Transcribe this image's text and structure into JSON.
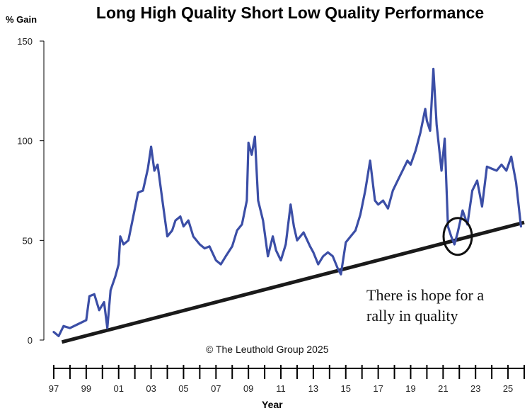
{
  "chart_data": {
    "type": "line",
    "title": "Long High Quality Short Low Quality Performance",
    "ylabel": "% Gain",
    "xlabel": "Year",
    "ylim": [
      0,
      150
    ],
    "yticks": [
      0,
      50,
      100,
      150
    ],
    "xlim": [
      1997,
      2026
    ],
    "xtick_labels": [
      "97",
      "99",
      "01",
      "03",
      "05",
      "07",
      "09",
      "11",
      "13",
      "15",
      "17",
      "19",
      "21",
      "23",
      "25"
    ],
    "series": [
      {
        "name": "Long High Quality Short Low Quality",
        "color": "#3b4ea6",
        "x": [
          1997.0,
          1997.3,
          1997.6,
          1998.0,
          1998.5,
          1999.0,
          1999.2,
          1999.5,
          1999.8,
          2000.1,
          2000.3,
          2000.5,
          2000.8,
          2001.0,
          2001.1,
          2001.3,
          2001.6,
          2001.9,
          2002.2,
          2002.5,
          2002.8,
          2003.0,
          2003.2,
          2003.4,
          2003.7,
          2004.0,
          2004.3,
          2004.5,
          2004.8,
          2005.0,
          2005.3,
          2005.6,
          2006.0,
          2006.3,
          2006.6,
          2007.0,
          2007.3,
          2007.6,
          2008.0,
          2008.3,
          2008.6,
          2008.9,
          2009.0,
          2009.2,
          2009.4,
          2009.6,
          2009.9,
          2010.2,
          2010.5,
          2010.7,
          2011.0,
          2011.3,
          2011.6,
          2011.8,
          2012.0,
          2012.4,
          2012.8,
          2013.0,
          2013.3,
          2013.6,
          2013.9,
          2014.2,
          2014.5,
          2014.7,
          2015.0,
          2015.3,
          2015.6,
          2015.9,
          2016.2,
          2016.5,
          2016.8,
          2017.0,
          2017.3,
          2017.6,
          2017.9,
          2018.2,
          2018.5,
          2018.8,
          2019.0,
          2019.3,
          2019.6,
          2019.9,
          2020.0,
          2020.2,
          2020.4,
          2020.6,
          2020.9,
          2021.1,
          2021.3,
          2021.5,
          2021.7,
          2021.9,
          2022.2,
          2022.5,
          2022.8,
          2023.1,
          2023.4,
          2023.7,
          2024.0,
          2024.3,
          2024.6,
          2024.9,
          2025.2,
          2025.5,
          2025.8
        ],
        "values": [
          4,
          2,
          7,
          6,
          8,
          10,
          22,
          23,
          15,
          19,
          6,
          25,
          32,
          38,
          52,
          48,
          50,
          62,
          74,
          75,
          86,
          97,
          85,
          88,
          70,
          52,
          55,
          60,
          62,
          57,
          60,
          52,
          48,
          46,
          47,
          40,
          38,
          42,
          47,
          55,
          58,
          70,
          99,
          93,
          102,
          70,
          60,
          42,
          52,
          45,
          40,
          48,
          68,
          57,
          50,
          54,
          47,
          44,
          38,
          42,
          44,
          42,
          36,
          33,
          49,
          52,
          55,
          63,
          75,
          90,
          70,
          68,
          70,
          66,
          75,
          80,
          85,
          90,
          88,
          95,
          104,
          116,
          110,
          105,
          136,
          108,
          85,
          101,
          57,
          52,
          48,
          54,
          65,
          58,
          75,
          80,
          67,
          87,
          86,
          85,
          88,
          85,
          92,
          79,
          57
        ]
      }
    ],
    "trendline": {
      "x": [
        1997.5,
        2026.0
      ],
      "y": [
        -1,
        59
      ]
    },
    "circle_center": {
      "x": 2021.9,
      "y": 52
    },
    "annotation": [
      "There is hope for a",
      "rally in quality"
    ],
    "copyright": "© The Leuthold Group 2025"
  }
}
